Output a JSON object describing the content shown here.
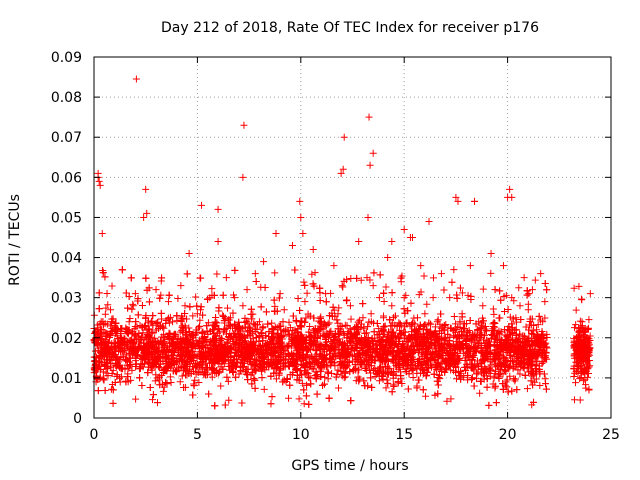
{
  "chart_data": {
    "type": "scatter",
    "title": "Day 212 of 2018, Rate Of TEC Index for receiver p176",
    "xlabel": "GPS time / hours",
    "ylabel": "ROTI / TECUs",
    "xlim": [
      0,
      25
    ],
    "ylim": [
      0,
      0.09
    ],
    "xticks": [
      0,
      5,
      10,
      15,
      20,
      25
    ],
    "xtick_labels": [
      "0",
      "5",
      "10",
      "15",
      "20",
      "25"
    ],
    "yticks": [
      0,
      0.01,
      0.02,
      0.03,
      0.04,
      0.05,
      0.06,
      0.07,
      0.08,
      0.09
    ],
    "ytick_labels": [
      "0",
      "0.01",
      "0.02",
      "0.03",
      "0.04",
      "0.05",
      "0.06",
      "0.07",
      "0.08",
      "0.09"
    ],
    "grid": true,
    "marker": "+",
    "color": "#ff0000",
    "series": [
      {
        "x": [
          0.05,
          0.15,
          0.25,
          0.35,
          0.2,
          0.3,
          0.4,
          0.1,
          0.6,
          0.8,
          1.0,
          1.2,
          1.5,
          1.7,
          1.9,
          2.0,
          2.1,
          2.3,
          2.4,
          2.5,
          2.6,
          2.8,
          3.0,
          3.2,
          3.4,
          3.6,
          3.8,
          4.0,
          4.2,
          4.4,
          4.6,
          4.8,
          5.0,
          5.2,
          5.4,
          5.6,
          5.8,
          6.0,
          6.2,
          6.4,
          6.6,
          6.8,
          7.0,
          7.2,
          7.4,
          7.6,
          7.8,
          8.0,
          8.2,
          8.4,
          8.6,
          8.8,
          9.0,
          9.2,
          9.4,
          9.6,
          9.8,
          10.0,
          10.2,
          10.4,
          10.6,
          10.8,
          11.0,
          11.2,
          11.4,
          11.6,
          11.8,
          12.0,
          12.2,
          12.4,
          12.6,
          12.8,
          13.0,
          13.2,
          13.4,
          13.5,
          13.6,
          13.8,
          14.0,
          14.2,
          14.4,
          14.6,
          14.8,
          15.0,
          15.2,
          15.4,
          15.6,
          15.8,
          16.0,
          16.2,
          16.4,
          16.6,
          16.8,
          17.0,
          17.2,
          17.4,
          17.6,
          17.8,
          18.0,
          18.2,
          18.4,
          18.6,
          18.8,
          19.0,
          19.2,
          19.4,
          19.6,
          19.8,
          20.0,
          20.2,
          20.4,
          20.6,
          20.8,
          21.0,
          21.2,
          21.4,
          21.6,
          21.8,
          23.2,
          23.4,
          23.6,
          23.8,
          24.0,
          2.05,
          7.25,
          7.2,
          12.1,
          12.05,
          13.3,
          13.35,
          13.5,
          13.25,
          0.2,
          0.25,
          2.55,
          2.5,
          6.0,
          9.95,
          10.1,
          11.95,
          14.4,
          15.0,
          15.3,
          16.2,
          17.5,
          18.4,
          20.1,
          20.2
        ],
        "y": [
          0.013,
          0.018,
          0.021,
          0.024,
          0.06,
          0.058,
          0.046,
          0.009,
          0.016,
          0.027,
          0.022,
          0.014,
          0.019,
          0.024,
          0.028,
          0.031,
          0.017,
          0.02,
          0.05,
          0.025,
          0.018,
          0.021,
          0.032,
          0.015,
          0.019,
          0.029,
          0.024,
          0.012,
          0.033,
          0.028,
          0.041,
          0.02,
          0.026,
          0.053,
          0.015,
          0.03,
          0.022,
          0.044,
          0.018,
          0.035,
          0.025,
          0.03,
          0.017,
          0.028,
          0.032,
          0.019,
          0.036,
          0.024,
          0.039,
          0.016,
          0.022,
          0.046,
          0.031,
          0.027,
          0.018,
          0.043,
          0.024,
          0.05,
          0.029,
          0.02,
          0.042,
          0.014,
          0.024,
          0.031,
          0.021,
          0.038,
          0.026,
          0.033,
          0.016,
          0.028,
          0.022,
          0.044,
          0.019,
          0.035,
          0.026,
          0.033,
          0.017,
          0.03,
          0.025,
          0.04,
          0.028,
          0.015,
          0.021,
          0.03,
          0.019,
          0.045,
          0.022,
          0.038,
          0.026,
          0.018,
          0.03,
          0.024,
          0.036,
          0.02,
          0.03,
          0.037,
          0.054,
          0.026,
          0.018,
          0.038,
          0.054,
          0.024,
          0.028,
          0.016,
          0.041,
          0.032,
          0.021,
          0.038,
          0.055,
          0.03,
          0.025,
          0.028,
          0.035,
          0.027,
          0.032,
          0.022,
          0.036,
          0.029,
          0.018,
          0.015,
          0.024,
          0.02,
          0.031,
          0.0845,
          0.073,
          0.06,
          0.07,
          0.062,
          0.075,
          0.063,
          0.066,
          0.05,
          0.061,
          0.059,
          0.051,
          0.057,
          0.052,
          0.054,
          0.046,
          0.061,
          0.044,
          0.047,
          0.045,
          0.049,
          0.055,
          0.054,
          0.057,
          0.055
        ]
      }
    ],
    "dense_band": {
      "segments": [
        {
          "x_range": [
            0,
            21.9
          ],
          "y_typical": [
            0.006,
            0.028
          ],
          "y_extreme": [
            0.003,
            0.037
          ]
        },
        {
          "x_range": [
            23.2,
            24.0
          ],
          "y_typical": [
            0.007,
            0.026
          ],
          "y_extreme": [
            0.004,
            0.033
          ]
        }
      ]
    }
  }
}
